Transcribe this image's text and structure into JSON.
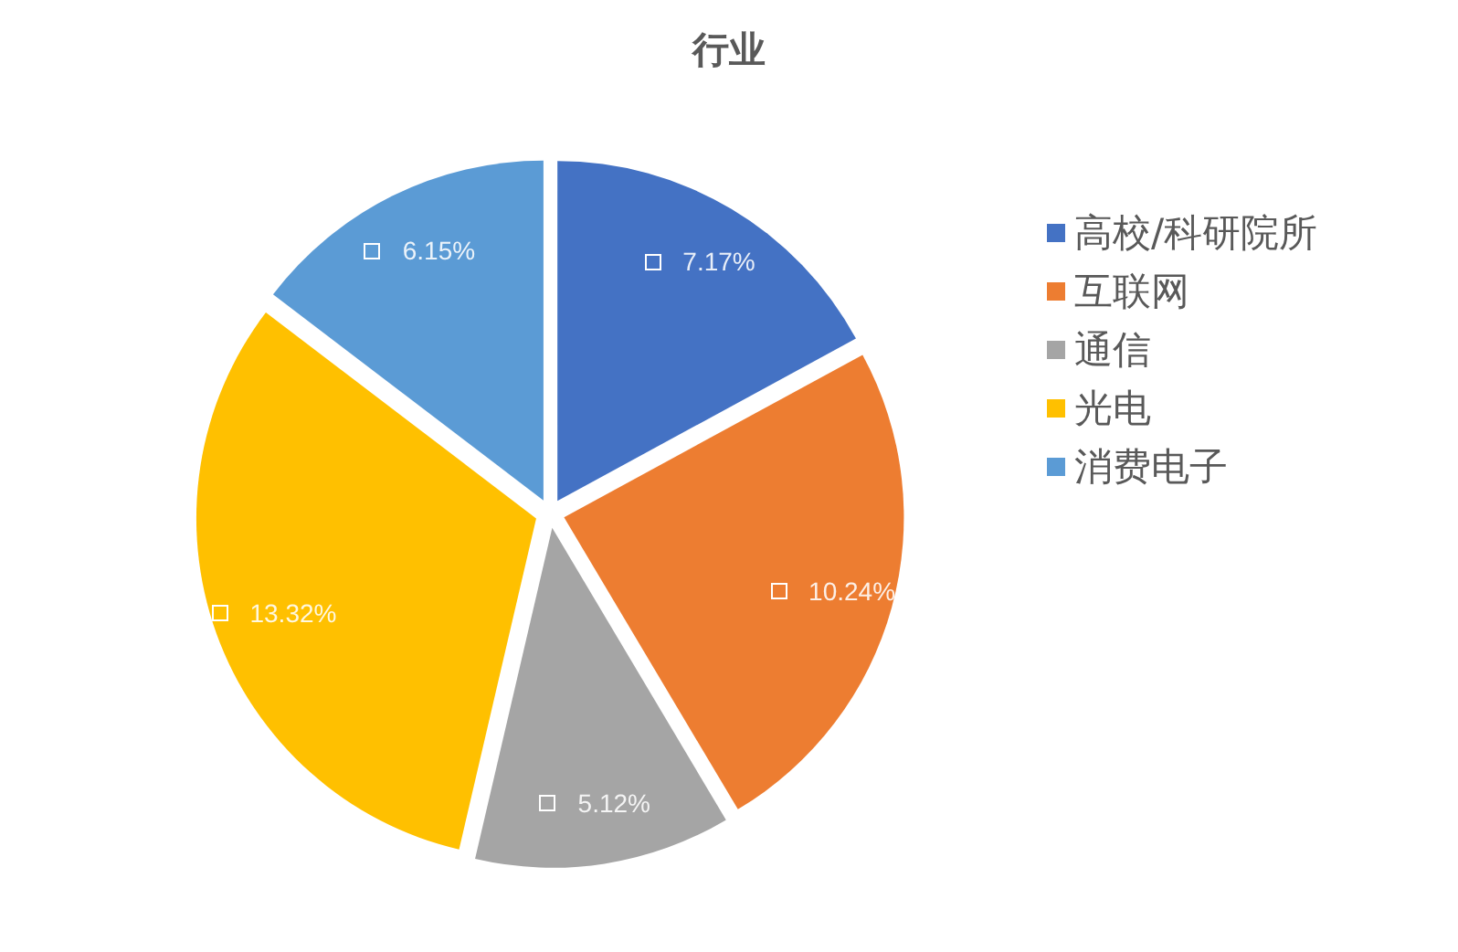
{
  "chart_data": {
    "type": "pie",
    "title": "行业",
    "categories": [
      "高校/科研院所",
      "互联网",
      "通信",
      "光电",
      "消费电子"
    ],
    "values": [
      7.17,
      10.24,
      5.12,
      13.32,
      6.15
    ],
    "value_labels": [
      "7.17%",
      "10.24%",
      "5.12%",
      "13.32%",
      "6.15%"
    ],
    "colors": [
      "#4472c4",
      "#ed7d31",
      "#a5a5a5",
      "#ffc000",
      "#5b9bd5"
    ],
    "legend": "right"
  }
}
